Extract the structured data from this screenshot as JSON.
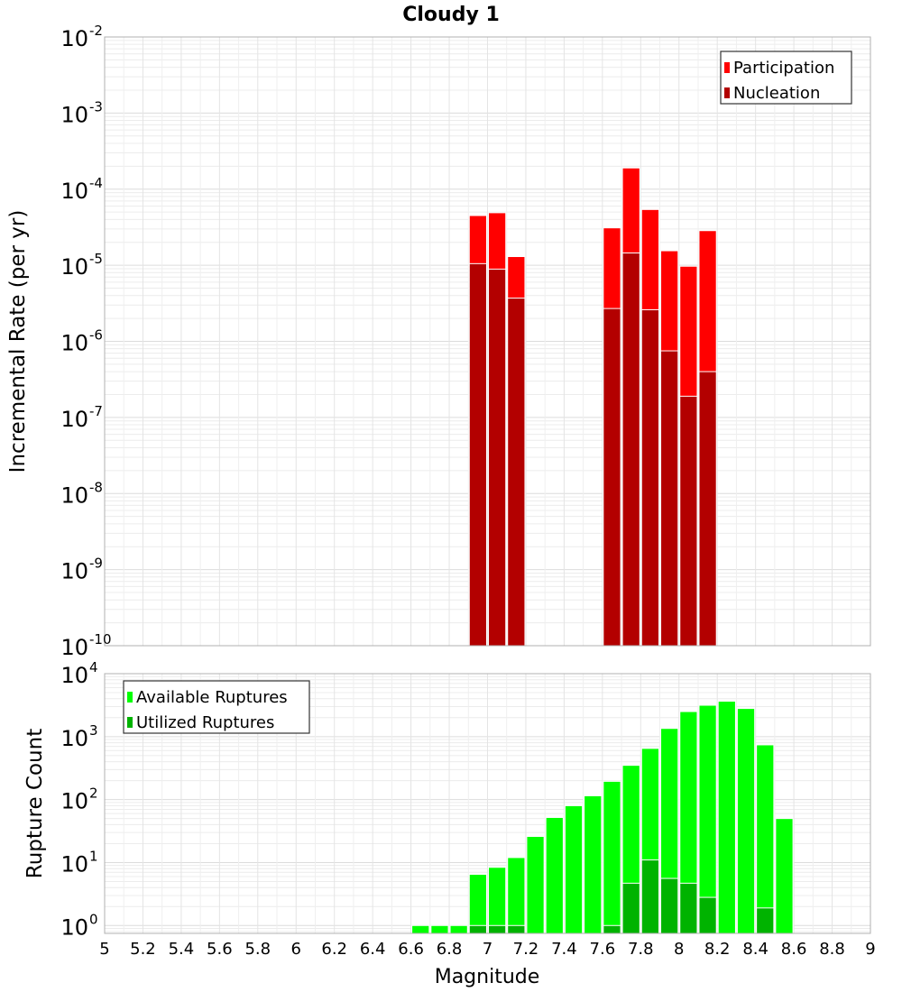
{
  "chart_data": [
    {
      "type": "bar",
      "title": "Cloudy 1",
      "xlabel": "Magnitude",
      "ylabel": "Incremental Rate (per yr)",
      "yscale": "log",
      "ylim_exp": [
        -10,
        -2
      ],
      "xlim": [
        5,
        9
      ],
      "bin_width": 0.1,
      "legend_position": "top-right",
      "series": [
        {
          "name": "Participation",
          "color": "#ff0000",
          "points": [
            {
              "x": 6.95,
              "y": 4.5e-05
            },
            {
              "x": 7.05,
              "y": 4.9e-05
            },
            {
              "x": 7.15,
              "y": 1.3e-05
            },
            {
              "x": 7.65,
              "y": 3.1e-05
            },
            {
              "x": 7.75,
              "y": 0.00019
            },
            {
              "x": 7.85,
              "y": 5.4e-05
            },
            {
              "x": 7.95,
              "y": 1.55e-05
            },
            {
              "x": 8.05,
              "y": 9.7e-06
            },
            {
              "x": 8.15,
              "y": 2.85e-05
            }
          ]
        },
        {
          "name": "Nucleation",
          "color": "#b30000",
          "points": [
            {
              "x": 6.95,
              "y": 1.05e-05
            },
            {
              "x": 7.05,
              "y": 8.9e-06
            },
            {
              "x": 7.15,
              "y": 3.7e-06
            },
            {
              "x": 7.65,
              "y": 2.7e-06
            },
            {
              "x": 7.75,
              "y": 1.45e-05
            },
            {
              "x": 7.85,
              "y": 2.6e-06
            },
            {
              "x": 7.95,
              "y": 7.5e-07
            },
            {
              "x": 8.05,
              "y": 1.9e-07
            },
            {
              "x": 8.15,
              "y": 4e-07
            }
          ]
        }
      ]
    },
    {
      "type": "bar",
      "title": "",
      "xlabel": "Magnitude",
      "ylabel": "Rupture Count",
      "yscale": "log",
      "ylim_exp": [
        0,
        4
      ],
      "ylim_min": 0.75,
      "xlim": [
        5,
        9
      ],
      "bin_width": 0.1,
      "legend_position": "top-left",
      "x_ticks": [
        "5",
        "5.2",
        "5.4",
        "5.6",
        "5.8",
        "6",
        "6.2",
        "6.4",
        "6.6",
        "6.8",
        "7",
        "7.2",
        "7.4",
        "7.6",
        "7.8",
        "8",
        "8.2",
        "8.4",
        "8.6",
        "8.8",
        "9"
      ],
      "series": [
        {
          "name": "Available Ruptures",
          "color": "#00ff00",
          "points": [
            {
              "x": 6.65,
              "y": 1
            },
            {
              "x": 6.75,
              "y": 1
            },
            {
              "x": 6.85,
              "y": 1
            },
            {
              "x": 6.95,
              "y": 6.5
            },
            {
              "x": 7.05,
              "y": 8.4
            },
            {
              "x": 7.15,
              "y": 12
            },
            {
              "x": 7.25,
              "y": 26
            },
            {
              "x": 7.35,
              "y": 52
            },
            {
              "x": 7.45,
              "y": 80
            },
            {
              "x": 7.55,
              "y": 115
            },
            {
              "x": 7.65,
              "y": 195
            },
            {
              "x": 7.75,
              "y": 350
            },
            {
              "x": 7.85,
              "y": 650
            },
            {
              "x": 7.95,
              "y": 1350
            },
            {
              "x": 8.05,
              "y": 2500
            },
            {
              "x": 8.15,
              "y": 3150
            },
            {
              "x": 8.25,
              "y": 3650
            },
            {
              "x": 8.35,
              "y": 2800
            },
            {
              "x": 8.45,
              "y": 740
            },
            {
              "x": 8.55,
              "y": 50
            }
          ]
        },
        {
          "name": "Utilized Ruptures",
          "color": "#00b300",
          "points": [
            {
              "x": 6.95,
              "y": 1
            },
            {
              "x": 7.05,
              "y": 1
            },
            {
              "x": 7.15,
              "y": 1
            },
            {
              "x": 7.65,
              "y": 1
            },
            {
              "x": 7.75,
              "y": 4.7
            },
            {
              "x": 7.85,
              "y": 11
            },
            {
              "x": 7.95,
              "y": 5.6
            },
            {
              "x": 8.05,
              "y": 4.7
            },
            {
              "x": 8.15,
              "y": 2.8
            },
            {
              "x": 8.45,
              "y": 1.9
            }
          ]
        }
      ]
    }
  ]
}
